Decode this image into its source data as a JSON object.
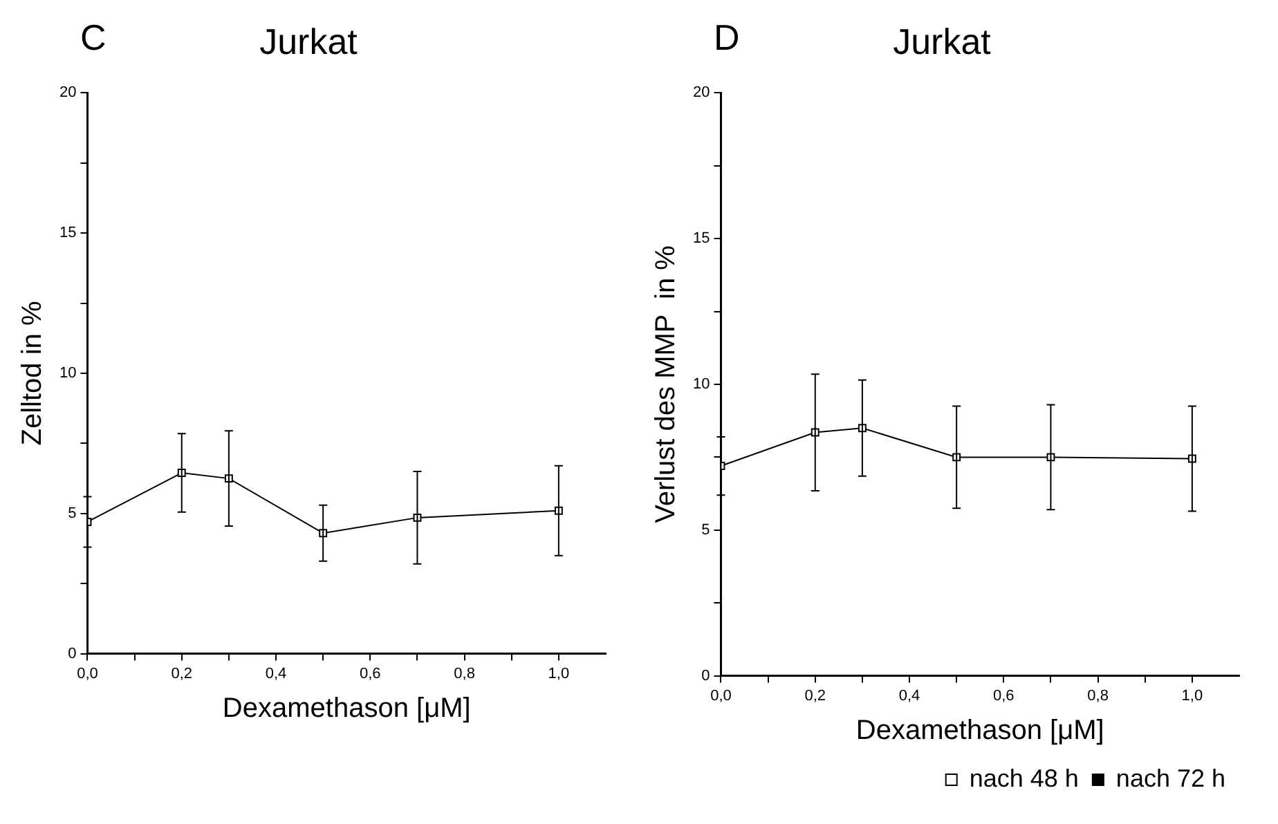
{
  "chart_data": [
    {
      "type": "line",
      "title": "Jurkat",
      "annotations": [
        "C"
      ],
      "xlabel": "Dexamethason [μM]",
      "ylabel": "Zelltod in %",
      "x": [
        0,
        0.2,
        0.3,
        0.5,
        0.7,
        1.0
      ],
      "series": [
        {
          "color": "#000000",
          "marker": "square",
          "values": [
            4.7,
            6.45,
            6.25,
            4.3,
            4.85,
            5.1
          ],
          "errors": [
            0.9,
            1.4,
            1.7,
            1.0,
            1.65,
            1.6
          ]
        }
      ],
      "xlim": [
        0,
        1.1
      ],
      "xticks": [
        {
          "value": 0,
          "label": "0,0"
        },
        {
          "value": 0.1,
          "label": null
        },
        {
          "value": 0.2,
          "label": "0,2"
        },
        {
          "value": 0.3,
          "label": null
        },
        {
          "value": 0.4,
          "label": "0,4"
        },
        {
          "value": 0.5,
          "label": null
        },
        {
          "value": 0.6,
          "label": "0,6"
        },
        {
          "value": 0.7,
          "label": null
        },
        {
          "value": 0.8,
          "label": "0,8"
        },
        {
          "value": 0.9,
          "label": null
        },
        {
          "value": 1.0,
          "label": "1,0"
        }
      ],
      "ylim": [
        0,
        20
      ],
      "yticks": [
        0,
        {
          "value": 2.5,
          "label": null
        },
        5,
        {
          "value": 7.5,
          "label": null
        },
        10,
        {
          "value": 12.5,
          "label": null
        },
        15,
        {
          "value": 17.5,
          "label": null
        },
        20
      ],
      "grid": false,
      "legend": false
    },
    {
      "type": "line",
      "title": "Jurkat",
      "annotations": [
        "D"
      ],
      "xlabel": "Dexamethason [μM]",
      "ylabel": "Verlust des MMP  in %",
      "x": [
        0,
        0.2,
        0.3,
        0.5,
        0.7,
        1.0
      ],
      "series": [
        {
          "name": "nach 48 h",
          "color": "#000000",
          "marker": "square",
          "values": [
            7.2,
            8.35,
            8.5,
            7.5,
            7.5,
            7.45
          ],
          "errors": [
            1.0,
            2.0,
            1.65,
            1.75,
            1.8,
            1.8
          ]
        },
        {
          "name": "nach 72 h",
          "color": "#000000",
          "marker": "square",
          "values": [
            null,
            null,
            null,
            null,
            null,
            null
          ]
        }
      ],
      "xlim": [
        0,
        1.1
      ],
      "xticks": [
        {
          "value": 0,
          "label": "0,0"
        },
        {
          "value": 0.1,
          "label": null
        },
        {
          "value": 0.2,
          "label": "0,2"
        },
        {
          "value": 0.3,
          "label": null
        },
        {
          "value": 0.4,
          "label": "0,4"
        },
        {
          "value": 0.5,
          "label": null
        },
        {
          "value": 0.6,
          "label": "0,6"
        },
        {
          "value": 0.7,
          "label": null
        },
        {
          "value": 0.8,
          "label": "0,8"
        },
        {
          "value": 0.9,
          "label": null
        },
        {
          "value": 1.0,
          "label": "1,0"
        }
      ],
      "ylim": [
        0,
        20
      ],
      "yticks": [
        0,
        {
          "value": 2.5,
          "label": null
        },
        5,
        {
          "value": 7.5,
          "label": null
        },
        10,
        {
          "value": 12.5,
          "label": null
        },
        15,
        {
          "value": 17.5,
          "label": null
        },
        20
      ],
      "grid": false,
      "legend": "bottom right"
    }
  ]
}
